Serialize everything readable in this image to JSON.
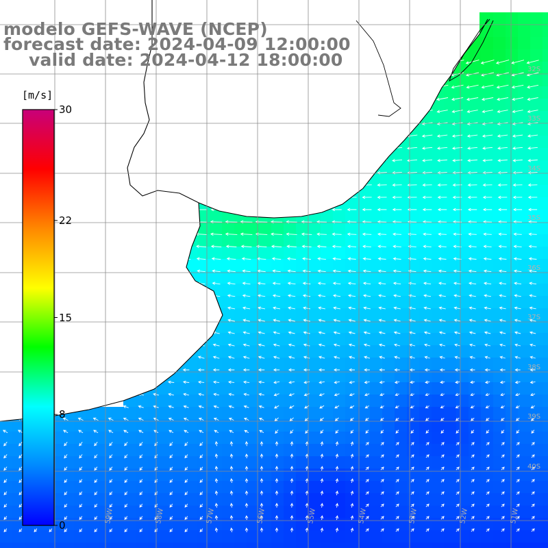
{
  "titles": {
    "line1": "modelo GEFS-WAVE (NCEP)",
    "line2": "forecast date: 2024-04-09 12:00:00",
    "line3": "valid date: 2024-04-12 18:00:00"
  },
  "colorbar": {
    "unit": "[m/s]",
    "ticks": [
      {
        "label": "30",
        "value": 30
      },
      {
        "label": "22",
        "value": 22
      },
      {
        "label": "15",
        "value": 15
      },
      {
        "label": "8",
        "value": 8
      },
      {
        "label": "0",
        "value": 0
      }
    ],
    "colors": [
      "#0000ff",
      "#0088ff",
      "#00ffff",
      "#00ff00",
      "#ffff00",
      "#ff8800",
      "#ff0000",
      "#c8007a"
    ]
  },
  "grid": {
    "lat_labels": [
      "32S",
      "33S",
      "34S",
      "35S",
      "36S",
      "37S",
      "38S",
      "39S",
      "40S"
    ],
    "lon_labels": [
      "59W",
      "58W",
      "57W",
      "56W",
      "55W",
      "54W",
      "53W",
      "52W",
      "51W"
    ]
  },
  "colors": {
    "land": "#ffffff",
    "coast": "#000000",
    "grid_line": "#8c8c8c",
    "arrow": "#ffffff",
    "title": "#7a7a7a"
  }
}
